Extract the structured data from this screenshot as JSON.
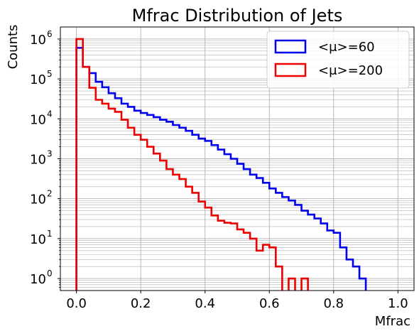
{
  "chart_data": {
    "type": "histogram",
    "title": "Mfrac Distribution of Jets",
    "xlabel": "Mfrac",
    "ylabel": "Counts",
    "xlim": [
      -0.05,
      1.05
    ],
    "ylim": [
      0.5,
      2000000
    ],
    "yscale": "log",
    "grid": "major+minor",
    "legend_position": "top-right",
    "x_ticks": [
      "0.0",
      "0.2",
      "0.4",
      "0.6",
      "0.8",
      "1.0"
    ],
    "y_ticks": [
      {
        "base": "10",
        "exp": "0"
      },
      {
        "base": "10",
        "exp": "1"
      },
      {
        "base": "10",
        "exp": "2"
      },
      {
        "base": "10",
        "exp": "3"
      },
      {
        "base": "10",
        "exp": "4"
      },
      {
        "base": "10",
        "exp": "5"
      },
      {
        "base": "10",
        "exp": "6"
      }
    ],
    "bin_edges": [
      0.0,
      0.02,
      0.04,
      0.06,
      0.08,
      0.1,
      0.12,
      0.14,
      0.16,
      0.18,
      0.2,
      0.22,
      0.24,
      0.26,
      0.28,
      0.3,
      0.32,
      0.34,
      0.36,
      0.38,
      0.4,
      0.42,
      0.44,
      0.46,
      0.48,
      0.5,
      0.52,
      0.54,
      0.56,
      0.58,
      0.6,
      0.62,
      0.64,
      0.66,
      0.68,
      0.7,
      0.72,
      0.74,
      0.76,
      0.78,
      0.8,
      0.82,
      0.84,
      0.86,
      0.88,
      0.9,
      0.92,
      0.94,
      0.96,
      0.98,
      1.0
    ],
    "series": [
      {
        "name": "<μ>=60",
        "color": "#0000ee",
        "values": [
          600000,
          200000,
          140000,
          85000,
          62000,
          44000,
          33000,
          24000,
          20000,
          16000,
          14000,
          12500,
          11000,
          9500,
          8500,
          7000,
          6000,
          5000,
          4000,
          3200,
          2800,
          2200,
          1700,
          1300,
          1000,
          750,
          550,
          400,
          330,
          250,
          180,
          140,
          110,
          90,
          70,
          50,
          40,
          32,
          24,
          16,
          14,
          6,
          3,
          2,
          1,
          0.45,
          0.45,
          0.45,
          0.45,
          0.45
        ]
      },
      {
        "name": "<μ>=200",
        "color": "#ee0000",
        "values": [
          1000000,
          200000,
          60000,
          30000,
          24000,
          18000,
          15000,
          9500,
          6000,
          4000,
          3000,
          2000,
          1350,
          900,
          550,
          400,
          310,
          200,
          140,
          85,
          60,
          38,
          28,
          25,
          24,
          17,
          14,
          10,
          5,
          7,
          6,
          2,
          0.45,
          1,
          0.45,
          1,
          0.45,
          0.45,
          0.45,
          0.45,
          0.45,
          0.45,
          0.45,
          0.45,
          0.45,
          0.45,
          0.45,
          0.45,
          0.45,
          0.45
        ]
      }
    ]
  }
}
